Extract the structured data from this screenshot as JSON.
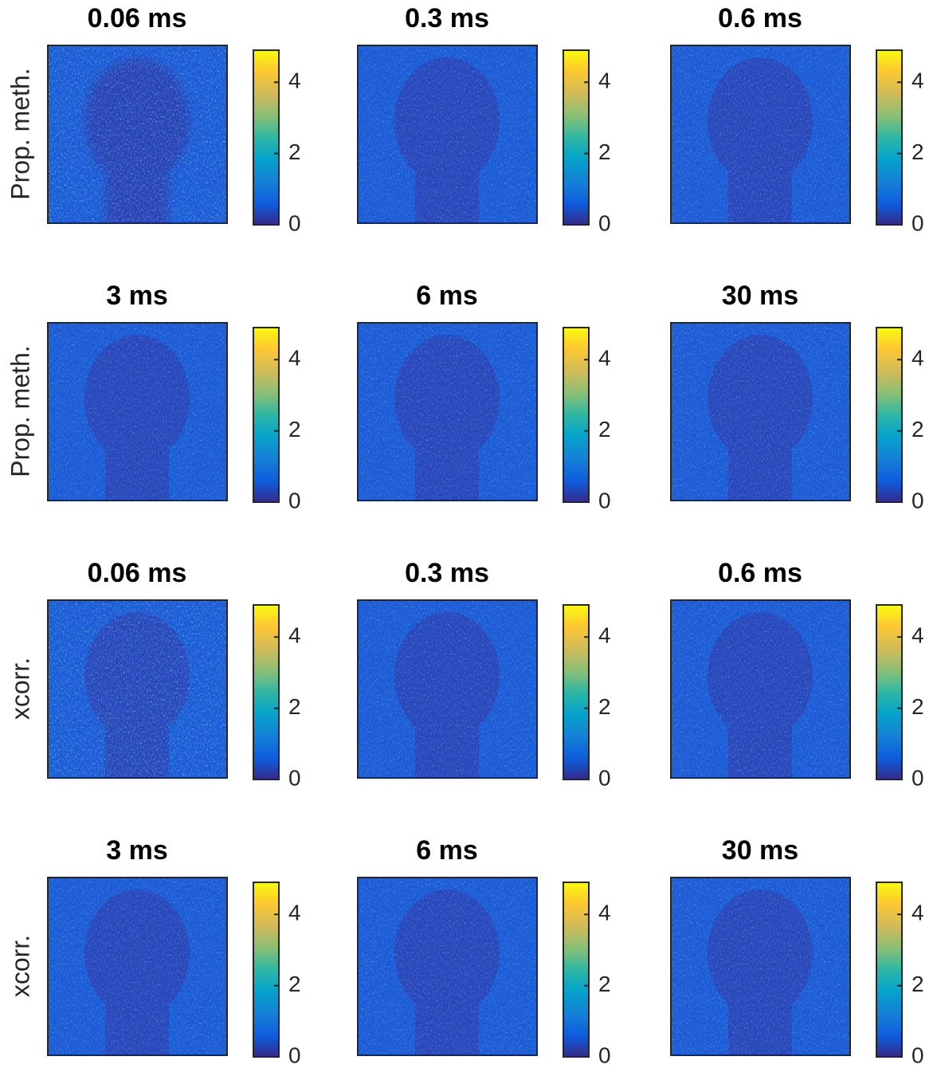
{
  "chart_data": [
    {
      "type": "image",
      "title": "0.06 ms",
      "ylabel": "Prop. meth.",
      "clim": [
        0,
        4.9
      ],
      "cticks": [
        0,
        2,
        4
      ]
    },
    {
      "type": "image",
      "title": "0.3 ms",
      "clim": [
        0,
        4.9
      ],
      "cticks": [
        0,
        2,
        4
      ]
    },
    {
      "type": "image",
      "title": "0.6 ms",
      "clim": [
        0,
        4.9
      ],
      "cticks": [
        0,
        2,
        4
      ]
    },
    {
      "type": "image",
      "title": "3 ms",
      "ylabel": "Prop. meth.",
      "clim": [
        0,
        4.9
      ],
      "cticks": [
        0,
        2,
        4
      ]
    },
    {
      "type": "image",
      "title": "6 ms",
      "clim": [
        0,
        4.9
      ],
      "cticks": [
        0,
        2,
        4
      ]
    },
    {
      "type": "image",
      "title": "30 ms",
      "clim": [
        0,
        4.9
      ],
      "cticks": [
        0,
        2,
        4
      ]
    },
    {
      "type": "image",
      "title": "0.06 ms",
      "ylabel": "xcorr.",
      "clim": [
        0,
        4.9
      ],
      "cticks": [
        0,
        2,
        4
      ]
    },
    {
      "type": "image",
      "title": "0.3 ms",
      "clim": [
        0,
        4.9
      ],
      "cticks": [
        0,
        2,
        4
      ]
    },
    {
      "type": "image",
      "title": "0.6 ms",
      "clim": [
        0,
        4.9
      ],
      "cticks": [
        0,
        2,
        4
      ]
    },
    {
      "type": "image",
      "title": "3 ms",
      "ylabel": "xcorr.",
      "clim": [
        0,
        4.9
      ],
      "cticks": [
        0,
        2,
        4
      ]
    },
    {
      "type": "image",
      "title": "6 ms",
      "clim": [
        0,
        4.9
      ],
      "cticks": [
        0,
        2,
        4
      ]
    },
    {
      "type": "image",
      "title": "30 ms",
      "clim": [
        0,
        4.9
      ],
      "cticks": [
        0,
        2,
        4
      ]
    }
  ]
}
